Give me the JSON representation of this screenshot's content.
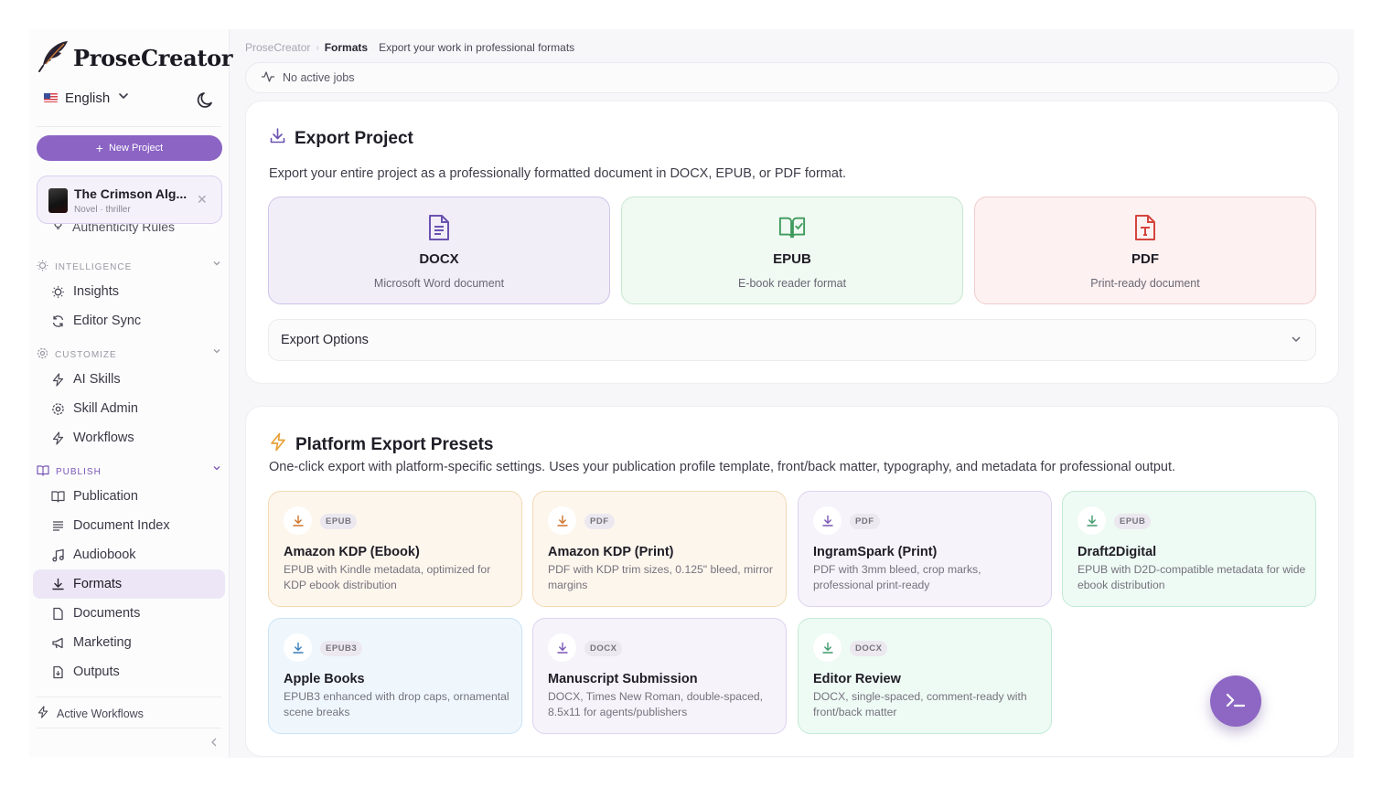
{
  "app": {
    "name": "ProseCreator"
  },
  "language": {
    "selected": "English"
  },
  "sidebar": {
    "new_project_label": "New Project",
    "project": {
      "title": "The Crimson Alg...",
      "subtitle": "Novel · thriller"
    },
    "clipped_item": "Authenticity Rules",
    "sections": [
      {
        "label": "Intelligence",
        "items": [
          "Insights",
          "Editor Sync"
        ]
      },
      {
        "label": "Customize",
        "items": [
          "AI Skills",
          "Skill Admin",
          "Workflows"
        ]
      },
      {
        "label": "Publish",
        "items": [
          "Publication",
          "Document Index",
          "Audiobook",
          "Formats",
          "Documents",
          "Marketing",
          "Outputs"
        ]
      }
    ],
    "active_item": "Formats",
    "active_workflows_label": "Active Workflows"
  },
  "breadcrumb": {
    "root": "ProseCreator",
    "current": "Formats",
    "description": "Export your work in professional formats"
  },
  "jobs_status": "No active jobs",
  "export_project": {
    "title": "Export Project",
    "description": "Export your entire project as a professionally formatted document in DOCX, EPUB, or PDF format.",
    "formats": [
      {
        "name": "DOCX",
        "desc": "Microsoft Word document",
        "icon": "file-text-icon",
        "color": "#6b52b0"
      },
      {
        "name": "EPUB",
        "desc": "E-book reader format",
        "icon": "book-check-icon",
        "color": "#3f9a5c"
      },
      {
        "name": "PDF",
        "desc": "Print-ready document",
        "icon": "file-type-icon",
        "color": "#d4453f"
      }
    ],
    "options_label": "Export Options"
  },
  "platform_presets": {
    "title": "Platform Export Presets",
    "description": "One-click export with platform-specific settings. Uses your publication profile template, front/back matter, typography, and metadata for professional output.",
    "presets": [
      {
        "badge": "EPUB",
        "name": "Amazon KDP (Ebook)",
        "desc": "EPUB with Kindle metadata, optimized for KDP ebook distribution",
        "theme": "orange"
      },
      {
        "badge": "PDF",
        "name": "Amazon KDP (Print)",
        "desc": "PDF with KDP trim sizes, 0.125\" bleed, mirror margins",
        "theme": "orange"
      },
      {
        "badge": "PDF",
        "name": "IngramSpark (Print)",
        "desc": "PDF with 3mm bleed, crop marks, professional print-ready",
        "theme": "purple"
      },
      {
        "badge": "EPUB",
        "name": "Draft2Digital",
        "desc": "EPUB with D2D-compatible metadata for wide ebook distribution",
        "theme": "green"
      },
      {
        "badge": "EPUB3",
        "name": "Apple Books",
        "desc": "EPUB3 enhanced with drop caps, ornamental scene breaks",
        "theme": "blue"
      },
      {
        "badge": "DOCX",
        "name": "Manuscript Submission",
        "desc": "DOCX, Times New Roman, double-spaced, 8.5x11 for agents/publishers",
        "theme": "purple"
      },
      {
        "badge": "DOCX",
        "name": "Editor Review",
        "desc": "DOCX, single-spaced, comment-ready with front/back matter",
        "theme": "green"
      }
    ]
  },
  "colors": {
    "accent": "#8b64c4",
    "active_bg": "#ece6f6"
  }
}
